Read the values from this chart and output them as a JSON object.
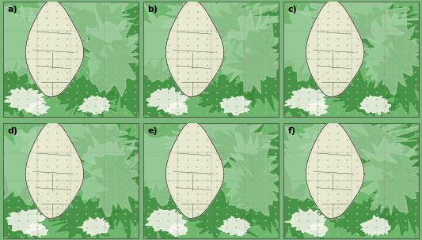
{
  "panels": [
    "a)",
    "b)",
    "c)",
    "d)",
    "e)",
    "f)"
  ],
  "nrows": 2,
  "ncols": 3,
  "figsize": [
    5.33,
    3.04
  ],
  "dpi": 100,
  "grid_color": "#aaaaaa",
  "label_fontsize": 8,
  "label_color": "black",
  "colors": {
    "bg_outer": "#7ab87a",
    "green_dark": "#3a8a3a",
    "green_mid": "#6db86d",
    "green_light": "#a8d4a8",
    "green_pale": "#c8e4c8",
    "cream": "#f0edd5",
    "white_patch": "#f8f8ee",
    "streamline": "#b8b89a",
    "border": "#333333",
    "grid": "#888888"
  }
}
